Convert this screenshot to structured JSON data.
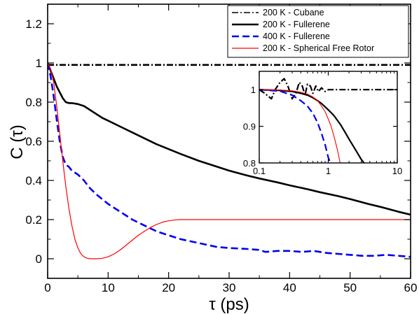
{
  "chart_data": [
    {
      "type": "line",
      "xlabel": "τ (ps)",
      "ylabel": "C (τ)",
      "xlim": [
        0,
        60
      ],
      "ylim": [
        -0.1,
        1.3
      ],
      "xticks": [
        0,
        10,
        20,
        30,
        40,
        50,
        60
      ],
      "yticks": [
        0,
        0.2,
        0.4,
        0.6,
        0.8,
        1,
        1.2
      ],
      "xtick_labels": [
        "0",
        "10",
        "20",
        "30",
        "40",
        "50",
        "60"
      ],
      "ytick_labels": [
        "0",
        "0.2",
        "0.4",
        "0.6",
        "0.8",
        "1",
        "1.2"
      ],
      "grid": false,
      "legend_position": "top-right",
      "series": [
        {
          "name": "200 K - Cubane",
          "color": "#000000",
          "style": "dash-dot",
          "x": [
            0,
            1,
            5,
            10,
            20,
            30,
            40,
            50,
            60
          ],
          "y": [
            0.99,
            0.99,
            0.99,
            0.99,
            0.99,
            0.99,
            0.99,
            0.99,
            0.99
          ]
        },
        {
          "name": "200 K - Fullerene",
          "color": "#000000",
          "style": "solid",
          "x": [
            0,
            0.5,
            1,
            1.5,
            2,
            2.5,
            3,
            3.5,
            4,
            5,
            6,
            7,
            8,
            9,
            10,
            12,
            14,
            16,
            18,
            20,
            22,
            25,
            28,
            30,
            33,
            35,
            38,
            40,
            43,
            45,
            48,
            50,
            53,
            55,
            58,
            60
          ],
          "y": [
            1.0,
            0.96,
            0.92,
            0.88,
            0.85,
            0.82,
            0.8,
            0.795,
            0.795,
            0.79,
            0.78,
            0.76,
            0.74,
            0.72,
            0.705,
            0.675,
            0.645,
            0.615,
            0.585,
            0.56,
            0.535,
            0.5,
            0.47,
            0.45,
            0.425,
            0.41,
            0.39,
            0.375,
            0.355,
            0.34,
            0.32,
            0.305,
            0.28,
            0.265,
            0.24,
            0.225
          ]
        },
        {
          "name": "400 K - Fullerene",
          "color": "#0000ee",
          "style": "dashed",
          "x": [
            0,
            0.5,
            1,
            1.5,
            2,
            2.5,
            3,
            3.5,
            4,
            5,
            6,
            7,
            8,
            10,
            12,
            14,
            16,
            18,
            20,
            22,
            25,
            28,
            30,
            33,
            35,
            36,
            38,
            40,
            42,
            44,
            46,
            48,
            50,
            52,
            54,
            56,
            58,
            60
          ],
          "y": [
            1.0,
            0.93,
            0.83,
            0.71,
            0.6,
            0.52,
            0.48,
            0.47,
            0.45,
            0.43,
            0.4,
            0.36,
            0.33,
            0.28,
            0.24,
            0.2,
            0.17,
            0.14,
            0.12,
            0.1,
            0.08,
            0.06,
            0.055,
            0.05,
            0.045,
            0.035,
            0.04,
            0.04,
            0.035,
            0.04,
            0.03,
            0.025,
            0.02,
            0.015,
            0.015,
            0.02,
            0.015,
            0.01
          ]
        },
        {
          "name": "200 K - Spherical Free Rotor",
          "color": "#ff0000",
          "style": "solid",
          "x": [
            0,
            0.5,
            1,
            1.5,
            2,
            2.5,
            3,
            3.5,
            4,
            4.5,
            5,
            5.5,
            6,
            6.5,
            7,
            7.5,
            8,
            9,
            10,
            11,
            12,
            13,
            14,
            15,
            16,
            17,
            18,
            19,
            20,
            21,
            22,
            23,
            24,
            25,
            27,
            30,
            35,
            40,
            45,
            50,
            55,
            60
          ],
          "y": [
            1.0,
            0.97,
            0.9,
            0.78,
            0.64,
            0.5,
            0.37,
            0.26,
            0.17,
            0.1,
            0.055,
            0.025,
            0.01,
            0.003,
            0.0,
            0.0,
            0.0,
            0.002,
            0.01,
            0.025,
            0.045,
            0.07,
            0.095,
            0.12,
            0.14,
            0.16,
            0.175,
            0.187,
            0.194,
            0.198,
            0.2,
            0.2,
            0.2,
            0.2,
            0.2,
            0.2,
            0.2,
            0.2,
            0.2,
            0.2,
            0.2,
            0.2
          ]
        }
      ]
    },
    {
      "type": "line",
      "xlabel": "",
      "ylabel": "",
      "xscale": "log",
      "xlim": [
        0.1,
        10
      ],
      "ylim": [
        0.8,
        1.05
      ],
      "xticks": [
        0.1,
        1,
        10
      ],
      "yticks": [
        0.8,
        0.9,
        1
      ],
      "xtick_labels": [
        "0.1",
        "1",
        "10"
      ],
      "ytick_labels": [
        "0.8",
        "0.9",
        "1"
      ],
      "grid": false,
      "series": [
        {
          "name": "200 K - Cubane",
          "color": "#000000",
          "style": "dash-dot",
          "x": [
            0.1,
            0.12,
            0.15,
            0.17,
            0.2,
            0.23,
            0.26,
            0.3,
            0.34,
            0.38,
            0.42,
            0.46,
            0.5,
            0.55,
            0.6,
            0.66,
            0.72,
            0.8,
            0.9,
            1.0,
            1.2,
            1.5,
            2,
            3,
            4,
            5,
            7,
            10
          ],
          "y": [
            1.0,
            0.99,
            0.975,
            1.0,
            1.02,
            1.03,
            1.01,
            0.975,
            0.99,
            1.02,
            1.01,
            0.985,
            1.015,
            1.01,
            0.99,
            1.01,
            0.995,
            1.005,
            0.995,
            1.0,
            1.0,
            1.0,
            1.0,
            1.0,
            1.0,
            1.0,
            1.0,
            1.0
          ]
        },
        {
          "name": "200 K - Fullerene",
          "color": "#000000",
          "style": "solid",
          "x": [
            0.1,
            0.2,
            0.3,
            0.4,
            0.5,
            0.6,
            0.7,
            0.8,
            0.9,
            1.0,
            1.2,
            1.5,
            1.8,
            2.0,
            2.5,
            3.0,
            3.3,
            3.5
          ],
          "y": [
            1.0,
            0.998,
            0.995,
            0.99,
            0.985,
            0.978,
            0.97,
            0.962,
            0.953,
            0.945,
            0.93,
            0.905,
            0.88,
            0.865,
            0.835,
            0.81,
            0.8,
            0.795
          ]
        },
        {
          "name": "400 K - Fullerene",
          "color": "#0000ee",
          "style": "dashed",
          "x": [
            0.1,
            0.2,
            0.3,
            0.4,
            0.5,
            0.6,
            0.7,
            0.8,
            0.9,
            1.0,
            1.1
          ],
          "y": [
            1.0,
            0.996,
            0.985,
            0.97,
            0.955,
            0.935,
            0.91,
            0.88,
            0.85,
            0.815,
            0.795
          ]
        },
        {
          "name": "200 K - Spherical Free Rotor",
          "color": "#ff0000",
          "style": "solid",
          "x": [
            0.1,
            0.2,
            0.3,
            0.4,
            0.5,
            0.6,
            0.7,
            0.8,
            0.9,
            1.0,
            1.1,
            1.2,
            1.3,
            1.4,
            1.5
          ],
          "y": [
            1.0,
            0.999,
            0.997,
            0.993,
            0.988,
            0.98,
            0.97,
            0.955,
            0.94,
            0.92,
            0.9,
            0.875,
            0.85,
            0.825,
            0.795
          ]
        }
      ]
    }
  ]
}
